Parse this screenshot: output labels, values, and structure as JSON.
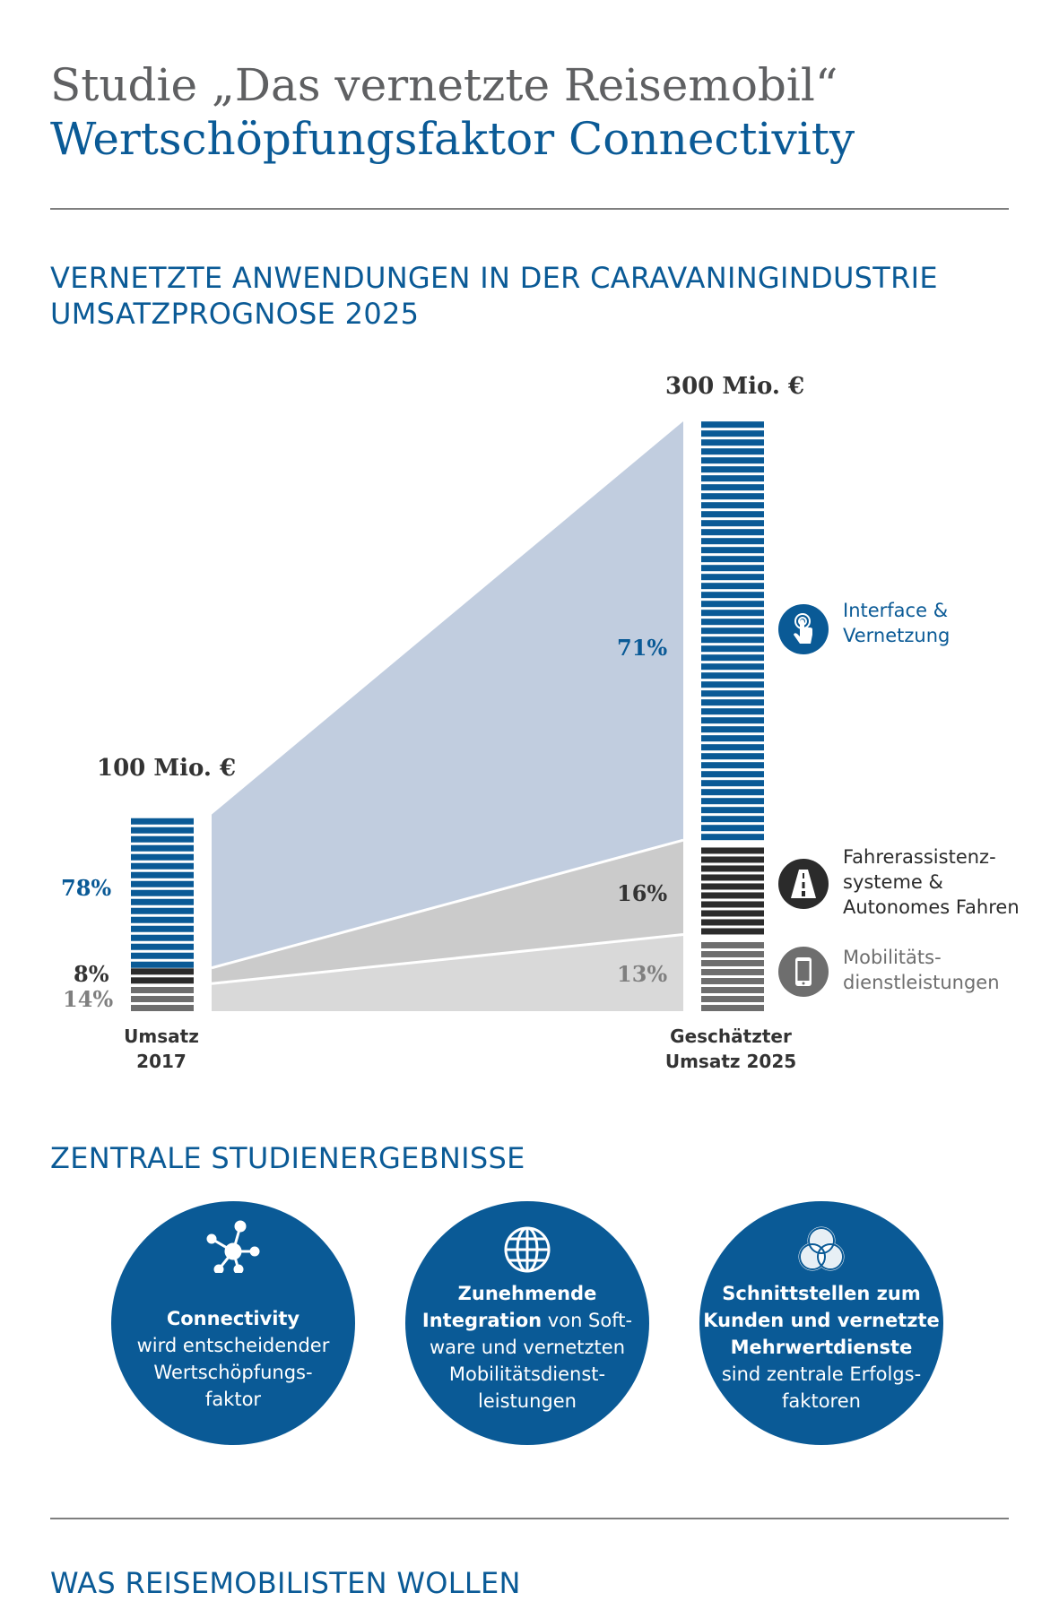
{
  "header": {
    "title_line_1": "Studie „Das vernetzte Reisemobil“",
    "title_line_2": "Wertschöpfungsfaktor Connectivity"
  },
  "section1": {
    "heading_line_1": "VERNETZTE ANWENDUNGEN IN DER CARAVANINGINDUSTRIE",
    "heading_line_2": "UMSATZPROGNOSE 2025"
  },
  "chart_data": {
    "type": "bar",
    "title": "",
    "categories": [
      "Umsatz 2017",
      "Geschätzter Umsatz 2025"
    ],
    "category_labels": [
      [
        "Umsatz",
        "2017"
      ],
      [
        "Geschätzter",
        "Umsatz 2025"
      ]
    ],
    "totals": [
      100,
      300
    ],
    "total_labels": [
      "100 Mio. €",
      "300 Mio. €"
    ],
    "unit": "Mio. €",
    "series": [
      {
        "name": "Mobilitätsdienstleistungen",
        "values": [
          14,
          13
        ],
        "labels": [
          "14%",
          "13%"
        ],
        "color": "#6e6e6e",
        "area_color": "#d9d9d9",
        "label_color": "#7f7f7f"
      },
      {
        "name": "Fahrerassistenzsysteme & Autonomes Fahren",
        "values": [
          8,
          16
        ],
        "labels": [
          "8%",
          "16%"
        ],
        "color": "#2b2b2b",
        "area_color": "#cbcbcb",
        "label_color": "#333333"
      },
      {
        "name": "Interface & Vernetzung",
        "values": [
          78,
          71
        ],
        "labels": [
          "78%",
          "71%"
        ],
        "color": "#0a5a96",
        "area_color": "#c1cddf",
        "label_color": "#0a5a96"
      }
    ],
    "legend": [
      {
        "icon": "touch-finger-icon",
        "lines": [
          "Interface &",
          "Vernetzung"
        ],
        "color": "#0a5a96"
      },
      {
        "icon": "road-icon",
        "lines": [
          "Fahrerassistenz-",
          "systeme &",
          "Autonomes Fahren"
        ],
        "color": "#2b2b2b"
      },
      {
        "icon": "smartphone-icon",
        "lines": [
          "Mobilitäts-",
          "dienstleistungen"
        ],
        "color": "#6e6e6e"
      }
    ]
  },
  "section2": {
    "heading": "ZENTRALE STUDIENERGEBNISSE",
    "findings": [
      {
        "icon": "network-icon",
        "bold": "Connectivity",
        "text_lines": [
          "wird entscheidender",
          "Wertschöpfungs-",
          "faktor"
        ]
      },
      {
        "icon": "globe-icon",
        "bold_1": "Zunehmende",
        "bold_2": "Integration",
        "rest_2": " von Soft-",
        "text_lines": [
          "ware und vernetzten",
          "Mobilitätsdienst-",
          "leistungen"
        ]
      },
      {
        "icon": "venn-circles-icon",
        "bold_lines": [
          "Schnittstellen zum",
          "Kunden und vernetzte",
          "Mehrwertdienste"
        ],
        "text_lines": [
          "sind zentrale Erfolgs-",
          "faktoren"
        ]
      }
    ]
  },
  "section3": {
    "heading": "WAS REISEMOBILISTEN WOLLEN"
  }
}
